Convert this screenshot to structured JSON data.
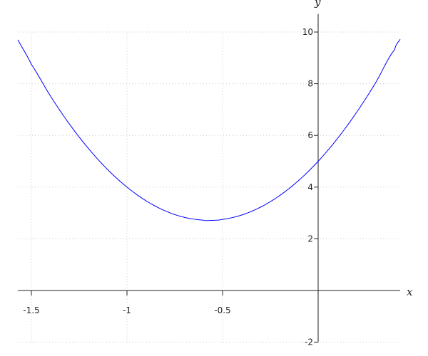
{
  "chart_data": {
    "type": "line",
    "title": "",
    "xlabel": "x",
    "ylabel": "y",
    "xlim": [
      -1.571,
      0.429
    ],
    "ylim": [
      -2,
      10.7
    ],
    "grid": true,
    "x_ticks": [
      -1.5,
      -1,
      -0.5
    ],
    "x_tick_labels": [
      "-1.5",
      "-1",
      "-0.5"
    ],
    "y_ticks": [
      -2,
      2,
      4,
      6,
      8,
      10
    ],
    "y_tick_labels": [
      "-2",
      "2",
      "4",
      "6",
      "8",
      "10"
    ],
    "series": [
      {
        "color": "#0000ff",
        "x": [
          -1.571,
          -1.5,
          -1.4,
          -1.3,
          -1.2,
          -1.1,
          -1.0,
          -0.9,
          -0.8,
          -0.7,
          -0.6,
          -0.571,
          -0.5,
          -0.4,
          -0.3,
          -0.2,
          -0.1,
          0.0,
          0.1,
          0.2,
          0.3,
          0.4,
          0.429
        ],
        "y": [
          9.7,
          8.75,
          7.52,
          6.43,
          5.48,
          4.67,
          4.0,
          3.47,
          3.08,
          2.83,
          2.72,
          2.71,
          2.75,
          2.92,
          3.23,
          3.68,
          4.27,
          5.0,
          5.87,
          6.88,
          8.03,
          9.32,
          9.72
        ]
      }
    ]
  }
}
